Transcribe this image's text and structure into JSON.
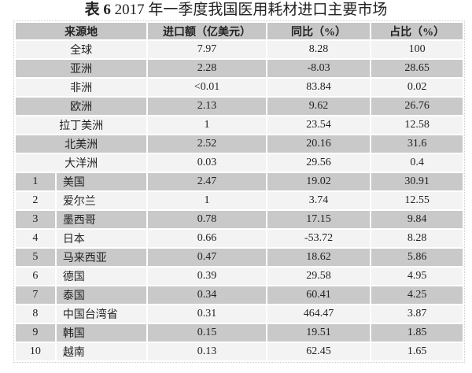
{
  "title": {
    "prefix": "表 6",
    "text": "2017 年一季度我国医用耗材进口主要市场"
  },
  "headers": [
    "来源地",
    "进口额（亿美元）",
    "同比（%）",
    "占比（%）"
  ],
  "regions": [
    {
      "name": "全球",
      "amount": "7.97",
      "yoy": "8.28",
      "share": "100"
    },
    {
      "name": "亚洲",
      "amount": "2.28",
      "yoy": "-8.03",
      "share": "28.65"
    },
    {
      "name": "非洲",
      "amount": "<0.01",
      "yoy": "83.84",
      "share": "0.02"
    },
    {
      "name": "欧洲",
      "amount": "2.13",
      "yoy": "9.62",
      "share": "26.76"
    },
    {
      "name": "拉丁美洲",
      "amount": "1",
      "yoy": "23.54",
      "share": "12.58"
    },
    {
      "name": "北美洲",
      "amount": "2.52",
      "yoy": "20.16",
      "share": "31.6"
    },
    {
      "name": "大洋洲",
      "amount": "0.03",
      "yoy": "29.56",
      "share": "0.4"
    }
  ],
  "countries": [
    {
      "rank": "1",
      "name": "美国",
      "amount": "2.47",
      "yoy": "19.02",
      "share": "30.91"
    },
    {
      "rank": "2",
      "name": "爱尔兰",
      "amount": "1",
      "yoy": "3.74",
      "share": "12.55"
    },
    {
      "rank": "3",
      "name": "墨西哥",
      "amount": "0.78",
      "yoy": "17.15",
      "share": "9.84"
    },
    {
      "rank": "4",
      "name": "日本",
      "amount": "0.66",
      "yoy": "-53.72",
      "share": "8.28"
    },
    {
      "rank": "5",
      "name": "马来西亚",
      "amount": "0.47",
      "yoy": "18.62",
      "share": "5.86"
    },
    {
      "rank": "6",
      "name": "德国",
      "amount": "0.39",
      "yoy": "29.58",
      "share": "4.95"
    },
    {
      "rank": "7",
      "name": "泰国",
      "amount": "0.34",
      "yoy": "60.41",
      "share": "4.25"
    },
    {
      "rank": "8",
      "name": "中国台湾省",
      "amount": "0.31",
      "yoy": "464.47",
      "share": "3.87"
    },
    {
      "rank": "9",
      "name": "韩国",
      "amount": "0.15",
      "yoy": "19.51",
      "share": "1.85"
    },
    {
      "rank": "10",
      "name": "越南",
      "amount": "0.13",
      "yoy": "62.45",
      "share": "1.65"
    }
  ],
  "colors": {
    "header": "#c6c6c6",
    "row_dark": "#c9c9c9",
    "row_light": "#f3f3f3"
  }
}
